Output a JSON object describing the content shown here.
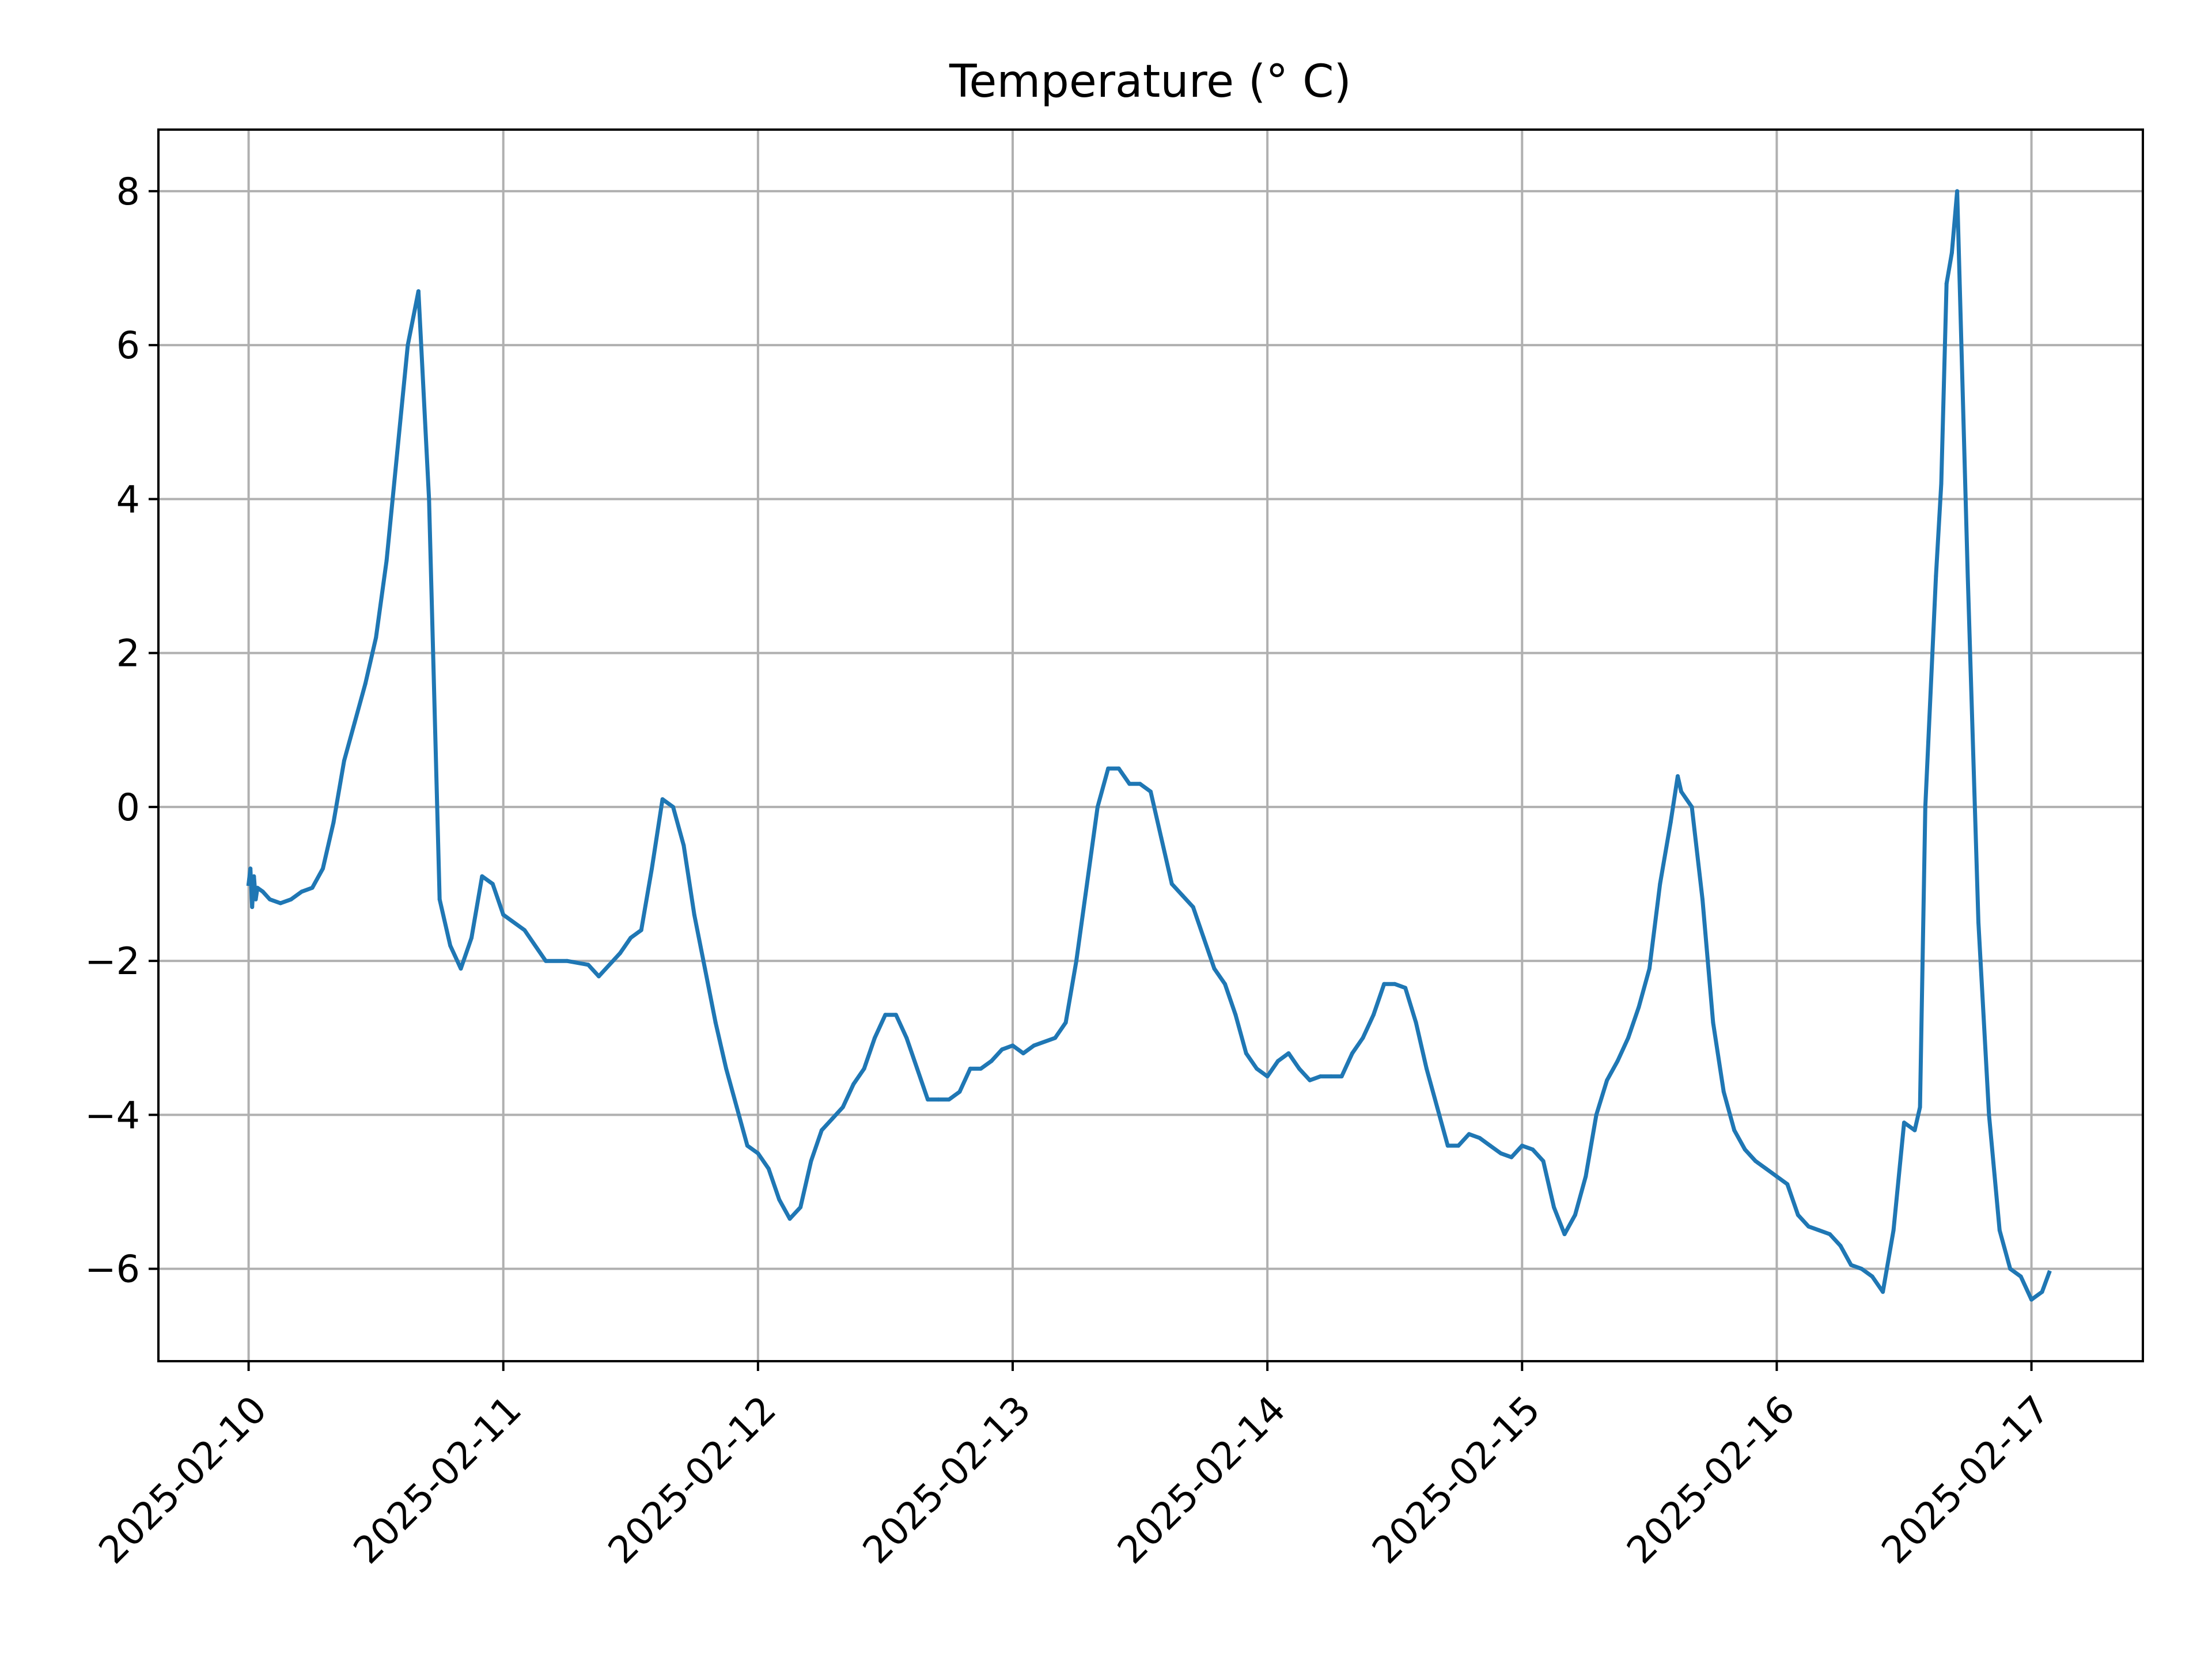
{
  "chart_data": {
    "type": "line",
    "title": "Temperature (° C)",
    "xlabel": "",
    "ylabel": "",
    "grid": true,
    "legend": "none",
    "xlim": [
      "2025-02-09 15:30",
      "2025-02-17 10:30"
    ],
    "ylim": [
      -7.2,
      8.8
    ],
    "x_ticks": [
      "2025-02-10",
      "2025-02-11",
      "2025-02-12",
      "2025-02-13",
      "2025-02-14",
      "2025-02-15",
      "2025-02-16",
      "2025-02-17"
    ],
    "y_ticks": [
      8,
      6,
      4,
      2,
      0,
      -2,
      -4,
      -6
    ],
    "y_tick_labels": [
      "8",
      "6",
      "4",
      "2",
      "0",
      "−2",
      "−4",
      "−6"
    ],
    "series": [
      {
        "color": "#1f77b4",
        "points": [
          [
            "2025-02-10 00:00",
            -1.0
          ],
          [
            "2025-02-10 00:10",
            -0.8
          ],
          [
            "2025-02-10 00:20",
            -1.3
          ],
          [
            "2025-02-10 00:30",
            -0.9
          ],
          [
            "2025-02-10 00:40",
            -1.2
          ],
          [
            "2025-02-10 00:50",
            -1.05
          ],
          [
            "2025-02-10 01:20",
            -1.1
          ],
          [
            "2025-02-10 02:00",
            -1.2
          ],
          [
            "2025-02-10 03:00",
            -1.25
          ],
          [
            "2025-02-10 04:00",
            -1.2
          ],
          [
            "2025-02-10 05:00",
            -1.1
          ],
          [
            "2025-02-10 06:00",
            -1.05
          ],
          [
            "2025-02-10 07:00",
            -0.8
          ],
          [
            "2025-02-10 08:00",
            -0.2
          ],
          [
            "2025-02-10 09:00",
            0.6
          ],
          [
            "2025-02-10 10:00",
            1.1
          ],
          [
            "2025-02-10 11:00",
            1.6
          ],
          [
            "2025-02-10 12:00",
            2.2
          ],
          [
            "2025-02-10 13:00",
            3.2
          ],
          [
            "2025-02-10 14:00",
            4.6
          ],
          [
            "2025-02-10 15:00",
            6.0
          ],
          [
            "2025-02-10 16:00",
            6.7
          ],
          [
            "2025-02-10 17:00",
            4.0
          ],
          [
            "2025-02-10 18:00",
            -1.2
          ],
          [
            "2025-02-10 19:00",
            -1.8
          ],
          [
            "2025-02-10 20:00",
            -2.1
          ],
          [
            "2025-02-10 21:00",
            -1.7
          ],
          [
            "2025-02-10 22:00",
            -0.9
          ],
          [
            "2025-02-10 23:00",
            -1.0
          ],
          [
            "2025-02-11 00:00",
            -1.4
          ],
          [
            "2025-02-11 02:00",
            -1.6
          ],
          [
            "2025-02-11 04:00",
            -2.0
          ],
          [
            "2025-02-11 06:00",
            -2.0
          ],
          [
            "2025-02-11 08:00",
            -2.05
          ],
          [
            "2025-02-11 09:00",
            -2.2
          ],
          [
            "2025-02-11 11:00",
            -1.9
          ],
          [
            "2025-02-11 12:00",
            -1.7
          ],
          [
            "2025-02-11 13:00",
            -1.6
          ],
          [
            "2025-02-11 14:00",
            -0.8
          ],
          [
            "2025-02-11 15:00",
            0.1
          ],
          [
            "2025-02-11 16:00",
            0.0
          ],
          [
            "2025-02-11 17:00",
            -0.5
          ],
          [
            "2025-02-11 18:00",
            -1.4
          ],
          [
            "2025-02-11 19:00",
            -2.1
          ],
          [
            "2025-02-11 20:00",
            -2.8
          ],
          [
            "2025-02-11 21:00",
            -3.4
          ],
          [
            "2025-02-11 22:00",
            -3.9
          ],
          [
            "2025-02-11 23:00",
            -4.4
          ],
          [
            "2025-02-12 00:00",
            -4.5
          ],
          [
            "2025-02-12 01:00",
            -4.7
          ],
          [
            "2025-02-12 02:00",
            -5.1
          ],
          [
            "2025-02-12 03:00",
            -5.35
          ],
          [
            "2025-02-12 04:00",
            -5.2
          ],
          [
            "2025-02-12 05:00",
            -4.6
          ],
          [
            "2025-02-12 06:00",
            -4.2
          ],
          [
            "2025-02-12 07:00",
            -4.05
          ],
          [
            "2025-02-12 08:00",
            -3.9
          ],
          [
            "2025-02-12 09:00",
            -3.6
          ],
          [
            "2025-02-12 10:00",
            -3.4
          ],
          [
            "2025-02-12 11:00",
            -3.0
          ],
          [
            "2025-02-12 12:00",
            -2.7
          ],
          [
            "2025-02-12 13:00",
            -2.7
          ],
          [
            "2025-02-12 14:00",
            -3.0
          ],
          [
            "2025-02-12 15:00",
            -3.4
          ],
          [
            "2025-02-12 16:00",
            -3.8
          ],
          [
            "2025-02-12 17:00",
            -3.8
          ],
          [
            "2025-02-12 18:00",
            -3.8
          ],
          [
            "2025-02-12 19:00",
            -3.7
          ],
          [
            "2025-02-12 20:00",
            -3.4
          ],
          [
            "2025-02-12 21:00",
            -3.4
          ],
          [
            "2025-02-12 22:00",
            -3.3
          ],
          [
            "2025-02-12 23:00",
            -3.15
          ],
          [
            "2025-02-13 00:00",
            -3.1
          ],
          [
            "2025-02-13 01:00",
            -3.2
          ],
          [
            "2025-02-13 02:00",
            -3.1
          ],
          [
            "2025-02-13 04:00",
            -3.0
          ],
          [
            "2025-02-13 05:00",
            -2.8
          ],
          [
            "2025-02-13 06:00",
            -2.0
          ],
          [
            "2025-02-13 07:00",
            -1.0
          ],
          [
            "2025-02-13 08:00",
            0.0
          ],
          [
            "2025-02-13 09:00",
            0.5
          ],
          [
            "2025-02-13 10:00",
            0.5
          ],
          [
            "2025-02-13 11:00",
            0.3
          ],
          [
            "2025-02-13 12:00",
            0.3
          ],
          [
            "2025-02-13 13:00",
            0.2
          ],
          [
            "2025-02-13 14:00",
            -0.4
          ],
          [
            "2025-02-13 15:00",
            -1.0
          ],
          [
            "2025-02-13 16:00",
            -1.15
          ],
          [
            "2025-02-13 17:00",
            -1.3
          ],
          [
            "2025-02-13 18:00",
            -1.7
          ],
          [
            "2025-02-13 19:00",
            -2.1
          ],
          [
            "2025-02-13 20:00",
            -2.3
          ],
          [
            "2025-02-13 21:00",
            -2.7
          ],
          [
            "2025-02-13 22:00",
            -3.2
          ],
          [
            "2025-02-13 23:00",
            -3.4
          ],
          [
            "2025-02-14 00:00",
            -3.5
          ],
          [
            "2025-02-14 01:00",
            -3.3
          ],
          [
            "2025-02-14 02:00",
            -3.2
          ],
          [
            "2025-02-14 03:00",
            -3.4
          ],
          [
            "2025-02-14 04:00",
            -3.55
          ],
          [
            "2025-02-14 05:00",
            -3.5
          ],
          [
            "2025-02-14 06:00",
            -3.5
          ],
          [
            "2025-02-14 07:00",
            -3.5
          ],
          [
            "2025-02-14 08:00",
            -3.2
          ],
          [
            "2025-02-14 09:00",
            -3.0
          ],
          [
            "2025-02-14 10:00",
            -2.7
          ],
          [
            "2025-02-14 11:00",
            -2.3
          ],
          [
            "2025-02-14 12:00",
            -2.3
          ],
          [
            "2025-02-14 13:00",
            -2.35
          ],
          [
            "2025-02-14 14:00",
            -2.8
          ],
          [
            "2025-02-14 15:00",
            -3.4
          ],
          [
            "2025-02-14 16:00",
            -3.9
          ],
          [
            "2025-02-14 17:00",
            -4.4
          ],
          [
            "2025-02-14 18:00",
            -4.4
          ],
          [
            "2025-02-14 19:00",
            -4.25
          ],
          [
            "2025-02-14 20:00",
            -4.3
          ],
          [
            "2025-02-14 21:00",
            -4.4
          ],
          [
            "2025-02-14 22:00",
            -4.5
          ],
          [
            "2025-02-14 23:00",
            -4.55
          ],
          [
            "2025-02-15 00:00",
            -4.4
          ],
          [
            "2025-02-15 01:00",
            -4.45
          ],
          [
            "2025-02-15 02:00",
            -4.6
          ],
          [
            "2025-02-15 03:00",
            -5.2
          ],
          [
            "2025-02-15 04:00",
            -5.55
          ],
          [
            "2025-02-15 05:00",
            -5.3
          ],
          [
            "2025-02-15 06:00",
            -4.8
          ],
          [
            "2025-02-15 07:00",
            -4.0
          ],
          [
            "2025-02-15 08:00",
            -3.55
          ],
          [
            "2025-02-15 09:00",
            -3.3
          ],
          [
            "2025-02-15 10:00",
            -3.0
          ],
          [
            "2025-02-15 11:00",
            -2.6
          ],
          [
            "2025-02-15 12:00",
            -2.1
          ],
          [
            "2025-02-15 13:00",
            -1.0
          ],
          [
            "2025-02-15 14:00",
            -0.2
          ],
          [
            "2025-02-15 14:40",
            0.4
          ],
          [
            "2025-02-15 15:00",
            0.2
          ],
          [
            "2025-02-15 16:00",
            0.0
          ],
          [
            "2025-02-15 17:00",
            -1.2
          ],
          [
            "2025-02-15 18:00",
            -2.8
          ],
          [
            "2025-02-15 19:00",
            -3.7
          ],
          [
            "2025-02-15 20:00",
            -4.2
          ],
          [
            "2025-02-15 21:00",
            -4.45
          ],
          [
            "2025-02-15 22:00",
            -4.6
          ],
          [
            "2025-02-15 23:00",
            -4.7
          ],
          [
            "2025-02-16 00:00",
            -4.8
          ],
          [
            "2025-02-16 01:00",
            -4.9
          ],
          [
            "2025-02-16 02:00",
            -5.3
          ],
          [
            "2025-02-16 03:00",
            -5.45
          ],
          [
            "2025-02-16 04:00",
            -5.5
          ],
          [
            "2025-02-16 05:00",
            -5.55
          ],
          [
            "2025-02-16 06:00",
            -5.7
          ],
          [
            "2025-02-16 07:00",
            -5.95
          ],
          [
            "2025-02-16 08:00",
            -6.0
          ],
          [
            "2025-02-16 09:00",
            -6.1
          ],
          [
            "2025-02-16 10:00",
            -6.3
          ],
          [
            "2025-02-16 11:00",
            -5.5
          ],
          [
            "2025-02-16 12:00",
            -4.1
          ],
          [
            "2025-02-16 13:00",
            -4.2
          ],
          [
            "2025-02-16 13:30",
            -3.9
          ],
          [
            "2025-02-16 14:00",
            0.0
          ],
          [
            "2025-02-16 15:00",
            3.0
          ],
          [
            "2025-02-16 15:30",
            4.2
          ],
          [
            "2025-02-16 16:00",
            6.8
          ],
          [
            "2025-02-16 16:30",
            7.2
          ],
          [
            "2025-02-16 17:00",
            8.0
          ],
          [
            "2025-02-16 18:00",
            3.0
          ],
          [
            "2025-02-16 19:00",
            -1.5
          ],
          [
            "2025-02-16 20:00",
            -4.0
          ],
          [
            "2025-02-16 21:00",
            -5.5
          ],
          [
            "2025-02-16 22:00",
            -6.0
          ],
          [
            "2025-02-16 23:00",
            -6.1
          ],
          [
            "2025-02-17 00:00",
            -6.4
          ],
          [
            "2025-02-17 01:00",
            -6.3
          ],
          [
            "2025-02-17 01:40",
            -6.05
          ]
        ]
      }
    ]
  }
}
